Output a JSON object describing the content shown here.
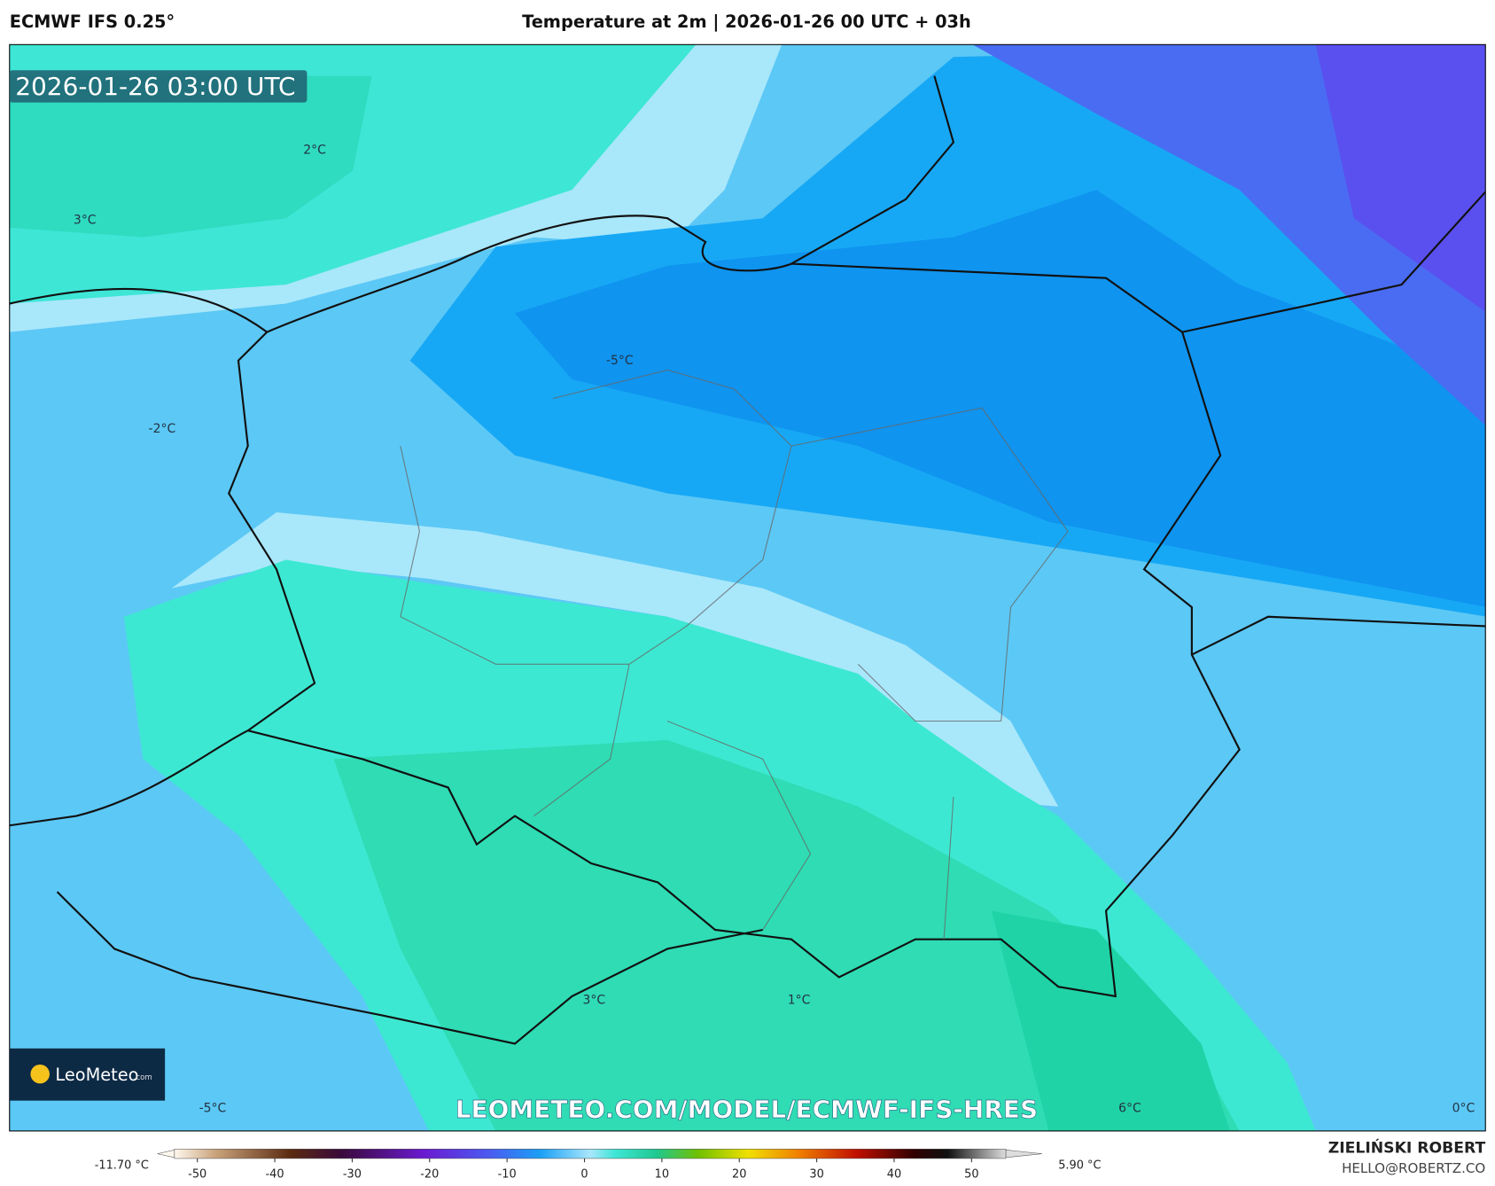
{
  "header": {
    "source": "ECMWF IFS 0.25°",
    "title": "Temperature at 2m | 2026-01-26 00 UTC + 03h"
  },
  "map": {
    "timestamp": "2026-01-26 03:00 UTC",
    "labels": [
      "2°C",
      "3°C",
      "-2°C",
      "-5°C",
      "3°C",
      "1°C",
      "-5°C",
      "6°C",
      "0°C"
    ],
    "watermark": "LEOMETEO.COM/MODEL/ECMWF-IFS-HRES",
    "logo": {
      "name": "LeoMeteo",
      "suffix": ".com"
    }
  },
  "colorbar": {
    "min_label": "-11.70 °C",
    "max_label": "5.90 °C",
    "ticks": [
      -50,
      -40,
      -30,
      -20,
      -10,
      0,
      10,
      20,
      30,
      40,
      50
    ]
  },
  "footer": {
    "author": "ZIELIŃSKI ROBERT",
    "email": "HELLO@ROBERTZ.CO"
  }
}
